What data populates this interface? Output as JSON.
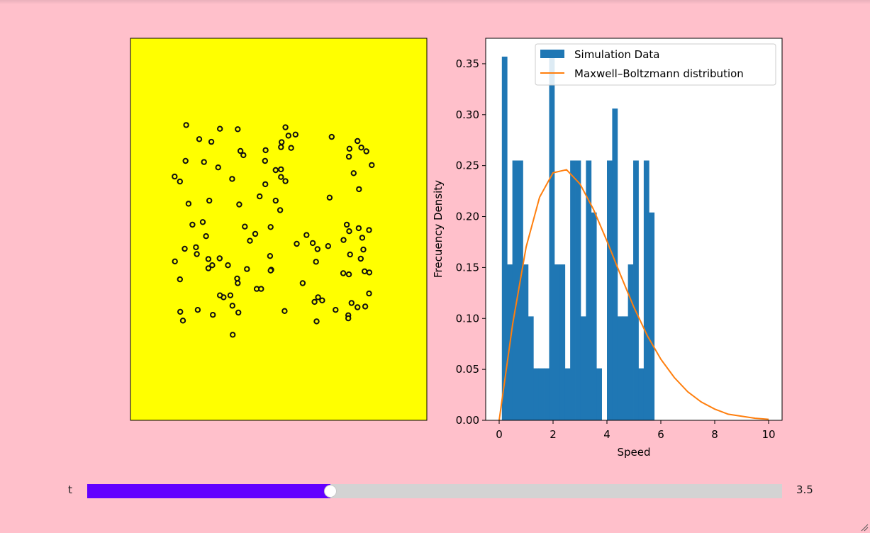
{
  "colors": {
    "background": "#ffc0cb",
    "particle_box": "#ffff00",
    "histogram": "#1f77b4",
    "curve": "#ff7f0e",
    "slider_fill": "#6200ff",
    "slider_track": "#d3d3d3"
  },
  "slider": {
    "label": "t",
    "value": 3.5,
    "value_text": "3.5",
    "fraction": 0.35
  },
  "chart_data": [
    {
      "type": "scatter",
      "subtype": "particle-box",
      "axes_visible": false,
      "xlim": [
        0,
        1
      ],
      "ylim": [
        0,
        1
      ],
      "marker": "circle",
      "marker_color": "#000000",
      "points": [
        [
          0.188,
          0.773
        ],
        [
          0.232,
          0.736
        ],
        [
          0.273,
          0.729
        ],
        [
          0.302,
          0.763
        ],
        [
          0.362,
          0.762
        ],
        [
          0.523,
          0.767
        ],
        [
          0.557,
          0.748
        ],
        [
          0.533,
          0.745
        ],
        [
          0.51,
          0.728
        ],
        [
          0.542,
          0.713
        ],
        [
          0.508,
          0.715
        ],
        [
          0.679,
          0.742
        ],
        [
          0.766,
          0.731
        ],
        [
          0.779,
          0.714
        ],
        [
          0.739,
          0.711
        ],
        [
          0.796,
          0.704
        ],
        [
          0.371,
          0.705
        ],
        [
          0.381,
          0.694
        ],
        [
          0.456,
          0.707
        ],
        [
          0.454,
          0.679
        ],
        [
          0.296,
          0.662
        ],
        [
          0.186,
          0.679
        ],
        [
          0.248,
          0.676
        ],
        [
          0.814,
          0.668
        ],
        [
          0.737,
          0.69
        ],
        [
          0.753,
          0.647
        ],
        [
          0.49,
          0.655
        ],
        [
          0.508,
          0.657
        ],
        [
          0.508,
          0.637
        ],
        [
          0.523,
          0.626
        ],
        [
          0.149,
          0.638
        ],
        [
          0.167,
          0.625
        ],
        [
          0.343,
          0.632
        ],
        [
          0.455,
          0.618
        ],
        [
          0.771,
          0.605
        ],
        [
          0.672,
          0.583
        ],
        [
          0.436,
          0.586
        ],
        [
          0.367,
          0.565
        ],
        [
          0.196,
          0.567
        ],
        [
          0.266,
          0.575
        ],
        [
          0.49,
          0.575
        ],
        [
          0.505,
          0.55
        ],
        [
          0.73,
          0.512
        ],
        [
          0.244,
          0.519
        ],
        [
          0.209,
          0.512
        ],
        [
          0.77,
          0.503
        ],
        [
          0.782,
          0.478
        ],
        [
          0.386,
          0.507
        ],
        [
          0.473,
          0.506
        ],
        [
          0.421,
          0.488
        ],
        [
          0.594,
          0.485
        ],
        [
          0.615,
          0.464
        ],
        [
          0.255,
          0.482
        ],
        [
          0.805,
          0.498
        ],
        [
          0.403,
          0.47
        ],
        [
          0.719,
          0.472
        ],
        [
          0.738,
          0.495
        ],
        [
          0.221,
          0.453
        ],
        [
          0.631,
          0.448
        ],
        [
          0.183,
          0.449
        ],
        [
          0.224,
          0.435
        ],
        [
          0.561,
          0.462
        ],
        [
          0.667,
          0.456
        ],
        [
          0.741,
          0.434
        ],
        [
          0.471,
          0.43
        ],
        [
          0.786,
          0.447
        ],
        [
          0.777,
          0.423
        ],
        [
          0.15,
          0.416
        ],
        [
          0.301,
          0.424
        ],
        [
          0.263,
          0.422
        ],
        [
          0.263,
          0.398
        ],
        [
          0.276,
          0.406
        ],
        [
          0.329,
          0.406
        ],
        [
          0.393,
          0.396
        ],
        [
          0.626,
          0.415
        ],
        [
          0.79,
          0.39
        ],
        [
          0.806,
          0.387
        ],
        [
          0.475,
          0.394
        ],
        [
          0.473,
          0.392
        ],
        [
          0.718,
          0.385
        ],
        [
          0.737,
          0.382
        ],
        [
          0.167,
          0.369
        ],
        [
          0.36,
          0.371
        ],
        [
          0.581,
          0.359
        ],
        [
          0.362,
          0.359
        ],
        [
          0.426,
          0.344
        ],
        [
          0.441,
          0.344
        ],
        [
          0.314,
          0.322
        ],
        [
          0.633,
          0.322
        ],
        [
          0.805,
          0.332
        ],
        [
          0.792,
          0.298
        ],
        [
          0.746,
          0.307
        ],
        [
          0.766,
          0.296
        ],
        [
          0.337,
          0.327
        ],
        [
          0.302,
          0.327
        ],
        [
          0.621,
          0.31
        ],
        [
          0.647,
          0.314
        ],
        [
          0.344,
          0.3
        ],
        [
          0.364,
          0.282
        ],
        [
          0.227,
          0.289
        ],
        [
          0.168,
          0.284
        ],
        [
          0.278,
          0.276
        ],
        [
          0.52,
          0.286
        ],
        [
          0.692,
          0.289
        ],
        [
          0.735,
          0.275
        ],
        [
          0.177,
          0.261
        ],
        [
          0.735,
          0.267
        ],
        [
          0.628,
          0.259
        ],
        [
          0.345,
          0.224
        ]
      ]
    },
    {
      "type": "bar",
      "subtype": "histogram-with-curve",
      "xlabel": "Speed",
      "ylabel": "Frecuency Density",
      "xlim": [
        -0.5,
        10.5
      ],
      "ylim": [
        0,
        0.375
      ],
      "xticks": [
        0,
        2,
        4,
        6,
        8,
        10
      ],
      "yticks": [
        0.0,
        0.05,
        0.1,
        0.15,
        0.2,
        0.25,
        0.3,
        0.35
      ],
      "ytick_labels": [
        "0.00",
        "0.05",
        "0.10",
        "0.15",
        "0.20",
        "0.25",
        "0.30",
        "0.35"
      ],
      "grid": false,
      "legend_position": "top-right",
      "histogram": {
        "name": "Simulation Data",
        "start": 0.1,
        "bin_width": 0.195,
        "values": [
          0.357,
          0.153,
          0.255,
          0.255,
          0.153,
          0.102,
          0.051,
          0.051,
          0.051,
          0.357,
          0.153,
          0.153,
          0.051,
          0.255,
          0.255,
          0.102,
          0.255,
          0.204,
          0.051,
          0.0,
          0.255,
          0.306,
          0.102,
          0.102,
          0.153,
          0.255,
          0.051,
          0.255,
          0.204
        ]
      },
      "curve": {
        "name": "Maxwell–Boltzmann distribution",
        "x": [
          0,
          0.5,
          1,
          1.5,
          2,
          2.5,
          3,
          3.5,
          4,
          4.5,
          5,
          5.5,
          6,
          6.5,
          7,
          7.5,
          8,
          8.5,
          9,
          9.5,
          10
        ],
        "y": [
          0.0,
          0.0944,
          0.17,
          0.219,
          0.243,
          0.246,
          0.232,
          0.207,
          0.176,
          0.143,
          0.111,
          0.083,
          0.06,
          0.042,
          0.028,
          0.018,
          0.011,
          0.006,
          0.004,
          0.002,
          0.001
        ]
      }
    }
  ]
}
